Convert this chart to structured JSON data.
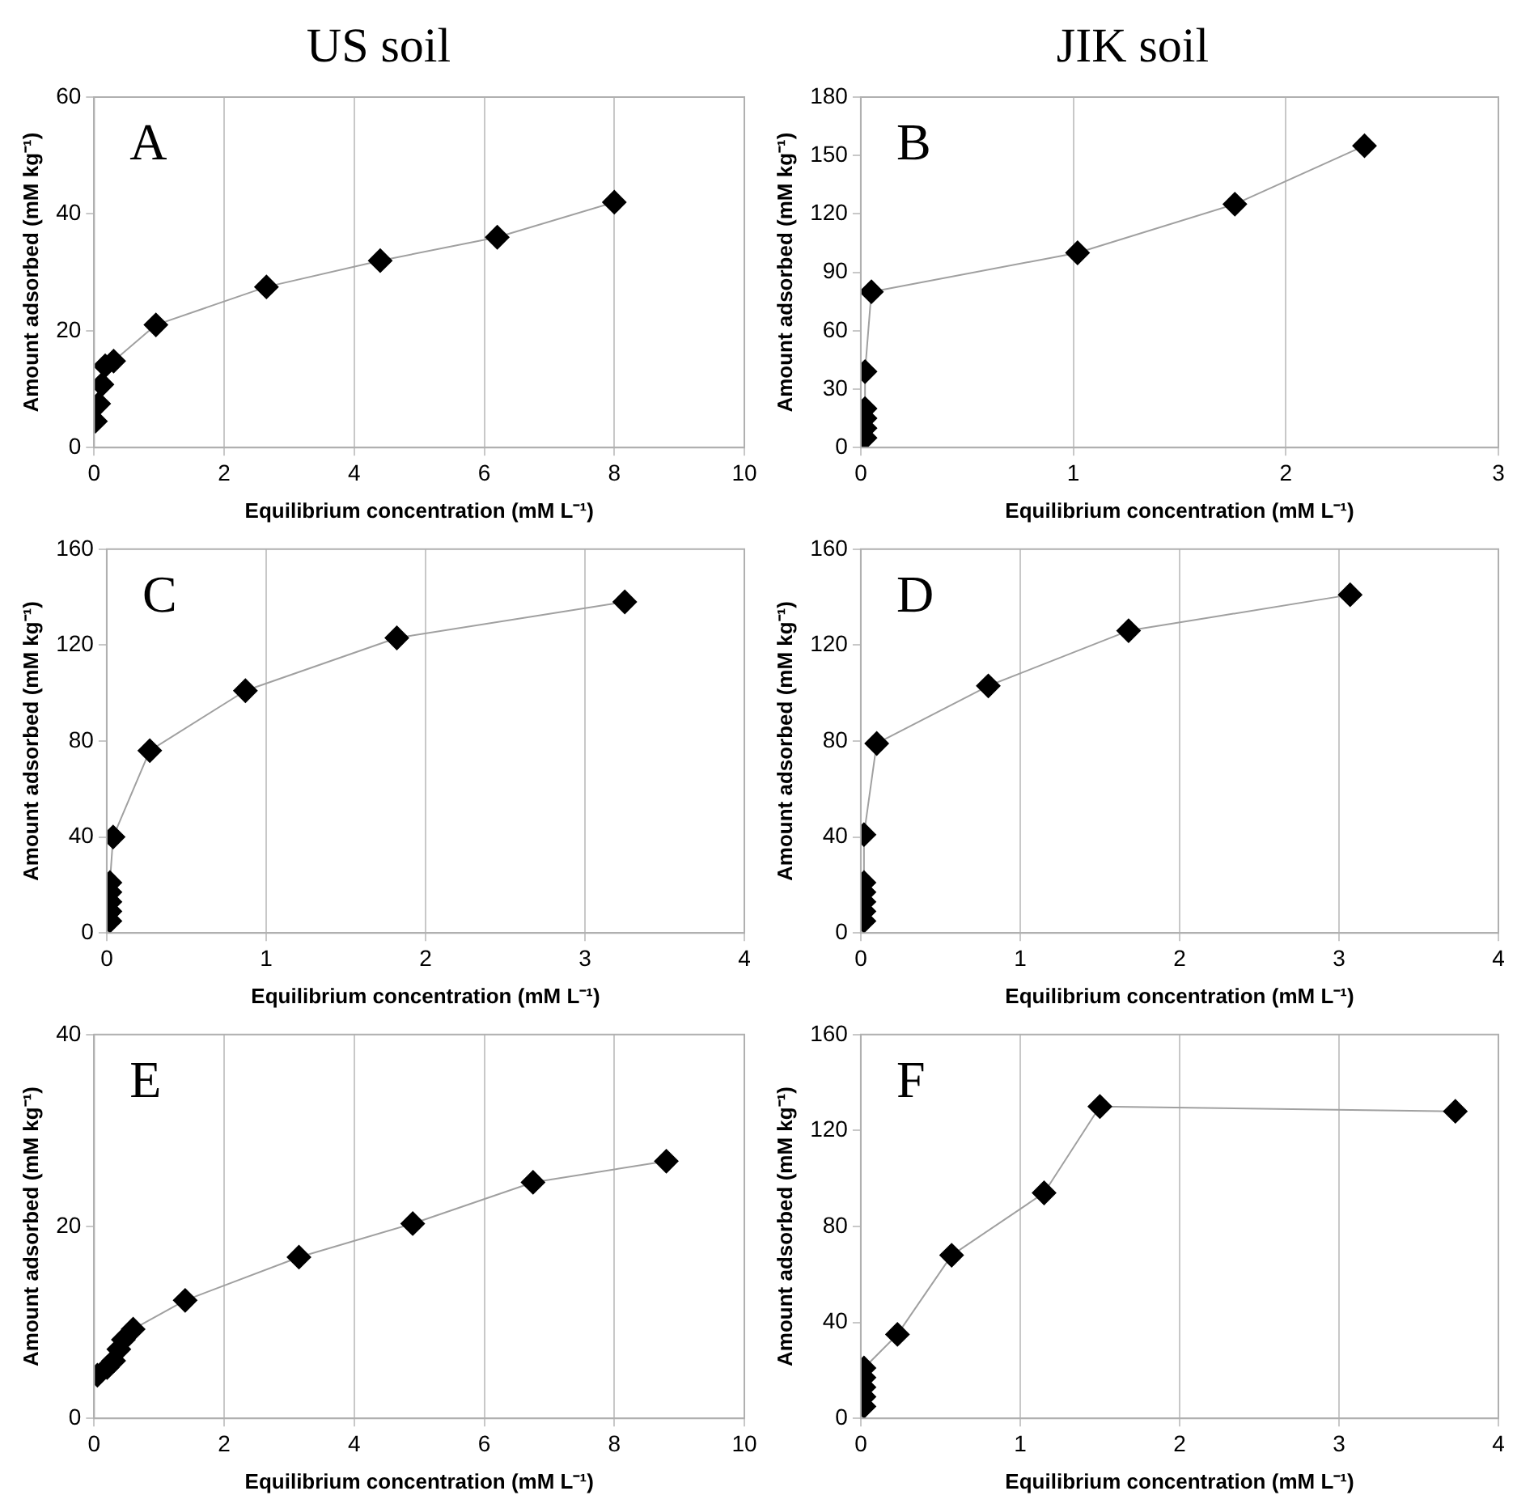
{
  "chart_data": [
    {
      "type": "line",
      "title": "US soil",
      "xlabel": "Equilibrium concentration (mM L⁻¹)",
      "ylabel": "Amount adsorbed (mM kg⁻¹)",
      "annotations": [
        "A"
      ],
      "x": [
        0.02,
        0.07,
        0.12,
        0.17,
        0.3,
        0.95,
        2.65,
        4.4,
        6.2,
        8.0
      ],
      "series": [
        {
          "color": "#000000",
          "values": [
            4.5,
            7.5,
            10.8,
            14,
            14.8,
            21,
            27.5,
            32,
            36,
            42
          ]
        }
      ],
      "xlim": [
        0,
        10
      ],
      "xticks": [
        0,
        2,
        4,
        6,
        8,
        10
      ],
      "ylim": [
        0,
        60
      ],
      "yticks": [
        0,
        20,
        40,
        60
      ],
      "grid": "x",
      "marker": "diamond",
      "line_style": "solid",
      "legend": false
    },
    {
      "type": "line",
      "title": "JIK soil",
      "xlabel": "Equilibrium concentration (mM L⁻¹)",
      "ylabel": "Amount adsorbed (mM kg⁻¹)",
      "annotations": [
        "B"
      ],
      "x": [
        0.02,
        0.02,
        0.02,
        0.02,
        0.02,
        0.05,
        1.02,
        1.76,
        2.37
      ],
      "series": [
        {
          "color": "#000000",
          "values": [
            5,
            10,
            15,
            20,
            39,
            80,
            100,
            125,
            155
          ]
        }
      ],
      "xlim": [
        0,
        3
      ],
      "xticks": [
        0,
        1,
        2,
        3
      ],
      "ylim": [
        0,
        180
      ],
      "yticks": [
        0,
        30,
        60,
        90,
        120,
        150,
        180
      ],
      "grid": "x",
      "marker": "diamond",
      "line_style": "solid",
      "legend": false
    },
    {
      "type": "line",
      "xlabel": "Equilibrium concentration (mM L⁻¹)",
      "ylabel": "Amount adsorbed (mM kg⁻¹)",
      "annotations": [
        "C"
      ],
      "x": [
        0.02,
        0.02,
        0.02,
        0.02,
        0.02,
        0.04,
        0.27,
        0.87,
        1.82,
        3.25
      ],
      "series": [
        {
          "color": "#000000",
          "values": [
            5,
            9,
            13,
            17,
            21,
            40,
            76,
            101,
            123,
            138
          ]
        }
      ],
      "xlim": [
        0,
        4
      ],
      "xticks": [
        0,
        1,
        2,
        3,
        4
      ],
      "ylim": [
        0,
        160
      ],
      "yticks": [
        0,
        40,
        80,
        120,
        160
      ],
      "grid": "x",
      "marker": "diamond",
      "line_style": "solid",
      "legend": false
    },
    {
      "type": "line",
      "xlabel": "Equilibrium concentration (mM L⁻¹)",
      "ylabel": "Amount adsorbed (mM kg⁻¹)",
      "annotations": [
        "D"
      ],
      "x": [
        0.02,
        0.02,
        0.02,
        0.02,
        0.02,
        0.02,
        0.1,
        0.8,
        1.68,
        3.07
      ],
      "series": [
        {
          "color": "#000000",
          "values": [
            5,
            9,
            13,
            17,
            21,
            41,
            79,
            103,
            126,
            141
          ]
        }
      ],
      "xlim": [
        0,
        4
      ],
      "xticks": [
        0,
        1,
        2,
        3,
        4
      ],
      "ylim": [
        0,
        160
      ],
      "yticks": [
        0,
        40,
        80,
        120,
        160
      ],
      "grid": "x",
      "marker": "diamond",
      "line_style": "solid",
      "legend": false
    },
    {
      "type": "line",
      "xlabel": "Equilibrium concentration (mM L⁻¹)",
      "ylabel": "Amount adsorbed (mM kg⁻¹)",
      "annotations": [
        "E"
      ],
      "x": [
        0.05,
        0.2,
        0.3,
        0.38,
        0.45,
        0.6,
        1.4,
        3.15,
        4.9,
        6.75,
        8.8
      ],
      "series": [
        {
          "color": "#000000",
          "values": [
            4.5,
            5.3,
            6,
            7.2,
            8.2,
            9.3,
            12.3,
            16.8,
            20.3,
            24.6,
            26.8
          ]
        }
      ],
      "xlim": [
        0,
        10
      ],
      "xticks": [
        0,
        2,
        4,
        6,
        8,
        10
      ],
      "ylim": [
        0,
        40
      ],
      "yticks": [
        0,
        20,
        40
      ],
      "grid": "x",
      "marker": "diamond",
      "line_style": "solid",
      "legend": false
    },
    {
      "type": "line",
      "xlabel": "Equilibrium concentration (mM L⁻¹)",
      "ylabel": "Amount adsorbed (mM kg⁻¹)",
      "annotations": [
        "F"
      ],
      "x": [
        0.02,
        0.02,
        0.02,
        0.02,
        0.02,
        0.23,
        0.57,
        1.15,
        1.5,
        3.73
      ],
      "series": [
        {
          "color": "#000000",
          "values": [
            5,
            9,
            13,
            17,
            21,
            35,
            68,
            94,
            130,
            128
          ]
        }
      ],
      "xlim": [
        0,
        4
      ],
      "xticks": [
        0,
        1,
        2,
        3,
        4
      ],
      "ylim": [
        0,
        160
      ],
      "yticks": [
        0,
        40,
        80,
        120,
        160
      ],
      "grid": "x",
      "marker": "diamond",
      "line_style": "solid",
      "legend": false
    }
  ]
}
